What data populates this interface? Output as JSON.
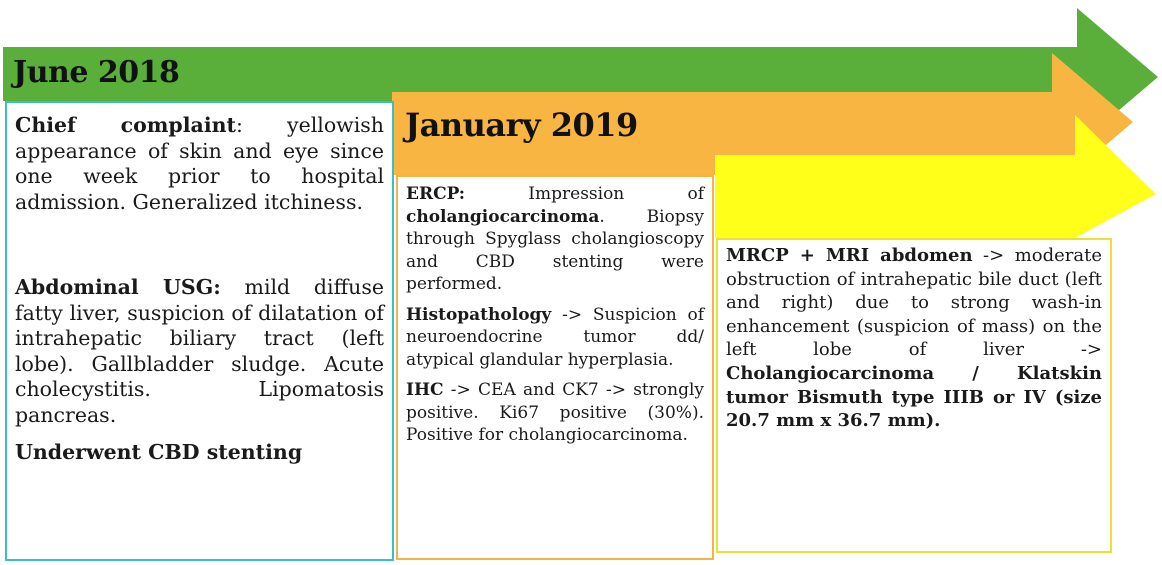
{
  "colors": {
    "green": "#5aae3a",
    "orange": "#f8b542",
    "yellow": "#ffff1a",
    "teal_border": "#35bfcf",
    "orange_border": "#f5b24a",
    "yellow_border": "#ece032"
  },
  "stage1": {
    "heading": "June 2018",
    "chief_label": "Chief complaint",
    "chief_text": ": yellowish appearance of skin and eye since one week prior to hospital admission. Generalized itchiness.",
    "usg_label": "Abdominal USG:",
    "usg_text": " mild diffuse fatty liver, suspicion of dilatation of intrahepatic biliary tract (left lobe). Gallbladder sludge. Acute cholecystitis. Lipomatosis pancreas.",
    "stent": "Underwent CBD stenting"
  },
  "stage2": {
    "heading": "January 2019",
    "ercp_label": "ERCP:",
    "ercp_text1": " Impression of ",
    "ercp_bold": "cholangiocarcinoma",
    "ercp_text2": ". Biopsy through Spyglass cholangioscopy and CBD stenting were performed.",
    "histo_label": "Histopathology",
    "histo_text": " -> Suspicion of neuroendocrine tumor dd/ atypical glandular hyperplasia.",
    "ihc_label": "IHC",
    "ihc_text": " -> CEA and CK7 -> strongly positive. Ki67 positive (30%). Positive for cholangiocarcinoma."
  },
  "stage3": {
    "mri_label": "MRCP + MRI abdomen",
    "mri_text": " -> moderate obstruction of intrahepatic bile duct (left and right) due to strong wash-in enhancement (suspicion of mass) on the left lobe of liver -> ",
    "mri_bold": "Cholangiocarcinoma / Klatskin tumor Bismuth type IIIB or IV (size 20.7 mm x 36.7 mm)."
  }
}
